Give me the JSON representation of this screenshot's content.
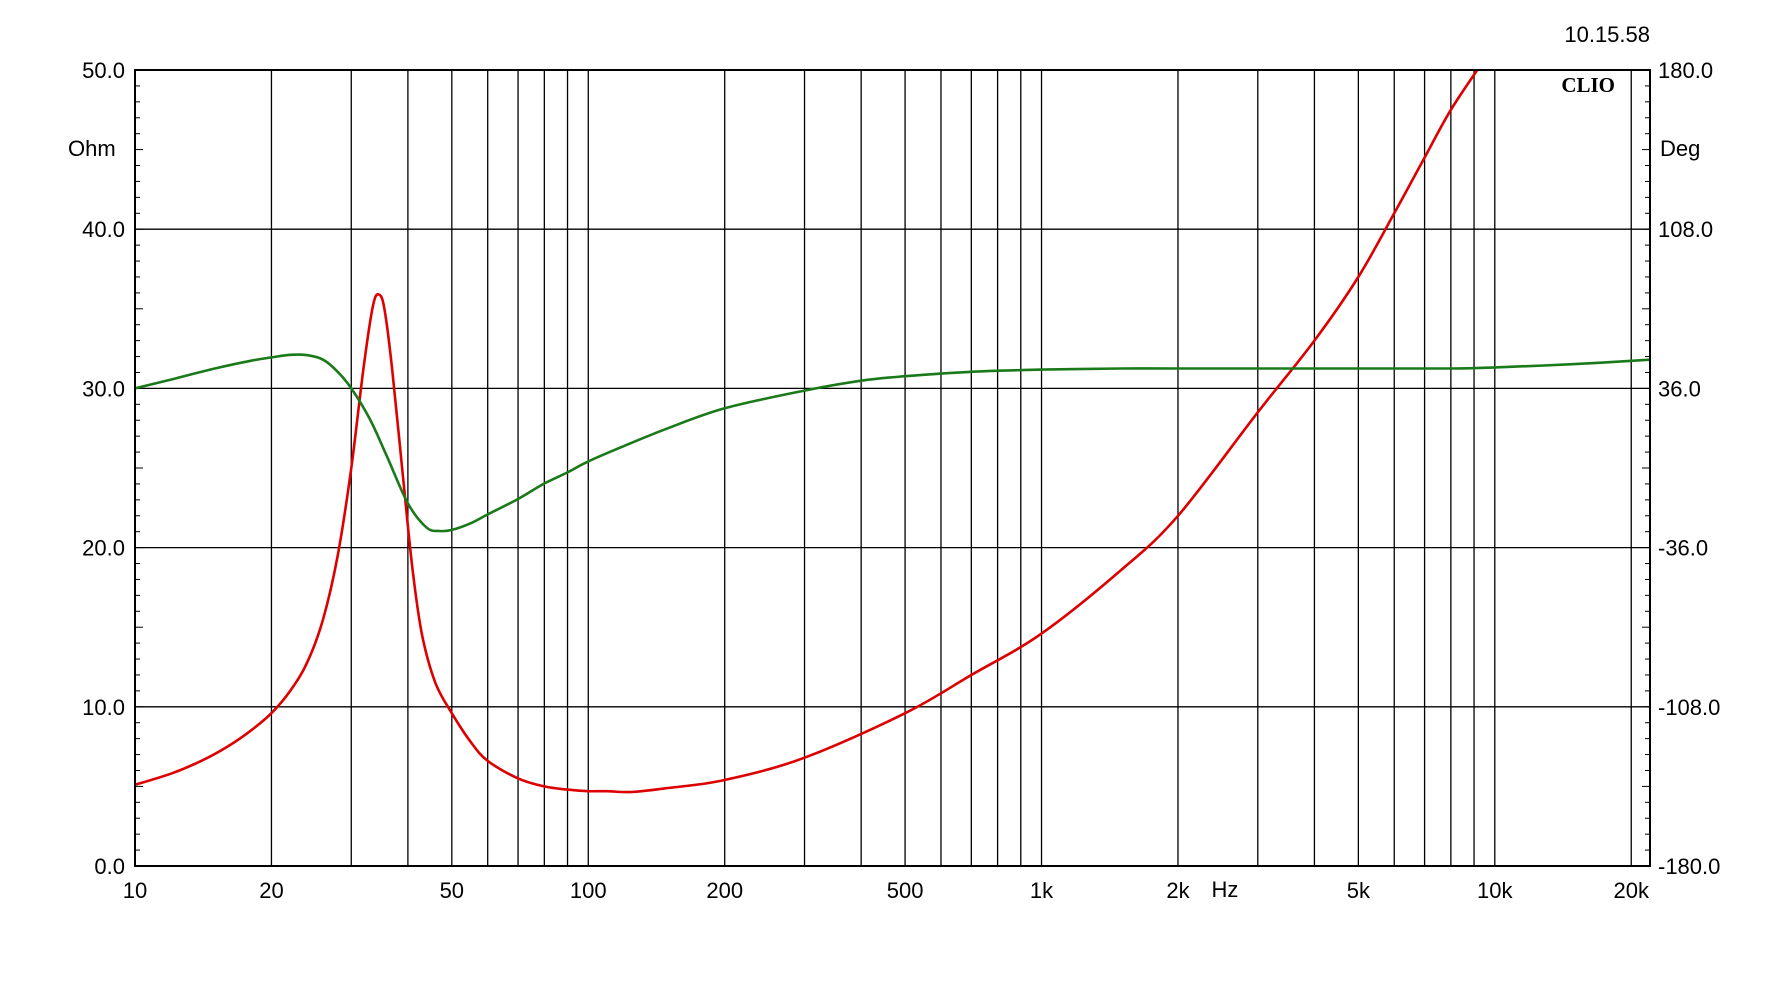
{
  "timestamp": "10.15.58",
  "brand": "CLIO",
  "chart_data": {
    "type": "line",
    "x_scale": "log",
    "xlim": [
      10,
      22000
    ],
    "x_unit": "Hz",
    "x_tick_labels": [
      {
        "v": 10,
        "t": "10"
      },
      {
        "v": 20,
        "t": "20"
      },
      {
        "v": 50,
        "t": "50"
      },
      {
        "v": 100,
        "t": "100"
      },
      {
        "v": 200,
        "t": "200"
      },
      {
        "v": 500,
        "t": "500"
      },
      {
        "v": 1000,
        "t": "1k"
      },
      {
        "v": 2000,
        "t": "2k"
      },
      {
        "v": 5000,
        "t": "5k"
      },
      {
        "v": 10000,
        "t": "10k"
      },
      {
        "v": 20000,
        "t": "20k"
      }
    ],
    "x_gridlines": [
      10,
      20,
      30,
      40,
      50,
      60,
      70,
      80,
      90,
      100,
      200,
      300,
      400,
      500,
      600,
      700,
      800,
      900,
      1000,
      2000,
      3000,
      4000,
      5000,
      6000,
      7000,
      8000,
      9000,
      10000,
      20000
    ],
    "y_left": {
      "unit": "Ohm",
      "ylim": [
        0,
        50
      ],
      "ticks": [
        "0.0",
        "10.0",
        "20.0",
        "30.0",
        "40.0",
        "50.0"
      ]
    },
    "y_right": {
      "unit": "Deg",
      "ylim": [
        -180,
        180
      ],
      "ticks": [
        "-180.0",
        "-108.0",
        "-36.0",
        "36.0",
        "108.0",
        "180.0"
      ]
    },
    "grid": true,
    "series": [
      {
        "axis": "left",
        "color": "#dd0000",
        "points": [
          [
            10,
            5.1
          ],
          [
            12,
            5.8
          ],
          [
            14,
            6.6
          ],
          [
            16,
            7.5
          ],
          [
            18,
            8.5
          ],
          [
            20,
            9.6
          ],
          [
            22,
            11.0
          ],
          [
            24,
            12.8
          ],
          [
            26,
            15.5
          ],
          [
            28,
            19.5
          ],
          [
            30,
            25.0
          ],
          [
            32,
            31.5
          ],
          [
            33.5,
            35.2
          ],
          [
            34.5,
            35.9
          ],
          [
            35.5,
            35.0
          ],
          [
            37,
            31.0
          ],
          [
            39,
            24.5
          ],
          [
            41,
            18.5
          ],
          [
            43,
            14.5
          ],
          [
            46,
            11.5
          ],
          [
            50,
            9.6
          ],
          [
            55,
            7.8
          ],
          [
            60,
            6.6
          ],
          [
            70,
            5.5
          ],
          [
            80,
            5.0
          ],
          [
            90,
            4.8
          ],
          [
            100,
            4.7
          ],
          [
            110,
            4.7
          ],
          [
            125,
            4.65
          ],
          [
            150,
            4.9
          ],
          [
            200,
            5.4
          ],
          [
            300,
            6.8
          ],
          [
            500,
            9.6
          ],
          [
            700,
            12.0
          ],
          [
            1000,
            14.6
          ],
          [
            1500,
            18.6
          ],
          [
            2000,
            22.0
          ],
          [
            3000,
            28.5
          ],
          [
            4000,
            33.0
          ],
          [
            5000,
            37.0
          ],
          [
            6000,
            41.0
          ],
          [
            7000,
            44.5
          ],
          [
            8000,
            47.5
          ],
          [
            9300,
            50.3
          ]
        ]
      },
      {
        "axis": "right",
        "color": "#1a7a1a",
        "points": [
          [
            10,
            36.0
          ],
          [
            12,
            40.0
          ],
          [
            15,
            45.0
          ],
          [
            18,
            48.5
          ],
          [
            20,
            50.0
          ],
          [
            22,
            51.2
          ],
          [
            24,
            51.0
          ],
          [
            26,
            49.0
          ],
          [
            28,
            43.5
          ],
          [
            30,
            36.0
          ],
          [
            33,
            22.0
          ],
          [
            36,
            5.0
          ],
          [
            40,
            -16.0
          ],
          [
            44,
            -27.0
          ],
          [
            47,
            -28.5
          ],
          [
            50,
            -28.0
          ],
          [
            55,
            -25.0
          ],
          [
            60,
            -21.0
          ],
          [
            70,
            -14.0
          ],
          [
            80,
            -7.0
          ],
          [
            90,
            -2.0
          ],
          [
            100,
            3.0
          ],
          [
            120,
            10.0
          ],
          [
            150,
            18.0
          ],
          [
            200,
            27.0
          ],
          [
            300,
            35.0
          ],
          [
            400,
            39.5
          ],
          [
            500,
            41.5
          ],
          [
            700,
            43.5
          ],
          [
            1000,
            44.5
          ],
          [
            1500,
            45.0
          ],
          [
            2000,
            45.0
          ],
          [
            5000,
            45.0
          ],
          [
            8000,
            45.0
          ],
          [
            10000,
            45.5
          ],
          [
            15000,
            47.0
          ],
          [
            22000,
            49.0
          ]
        ]
      }
    ]
  }
}
